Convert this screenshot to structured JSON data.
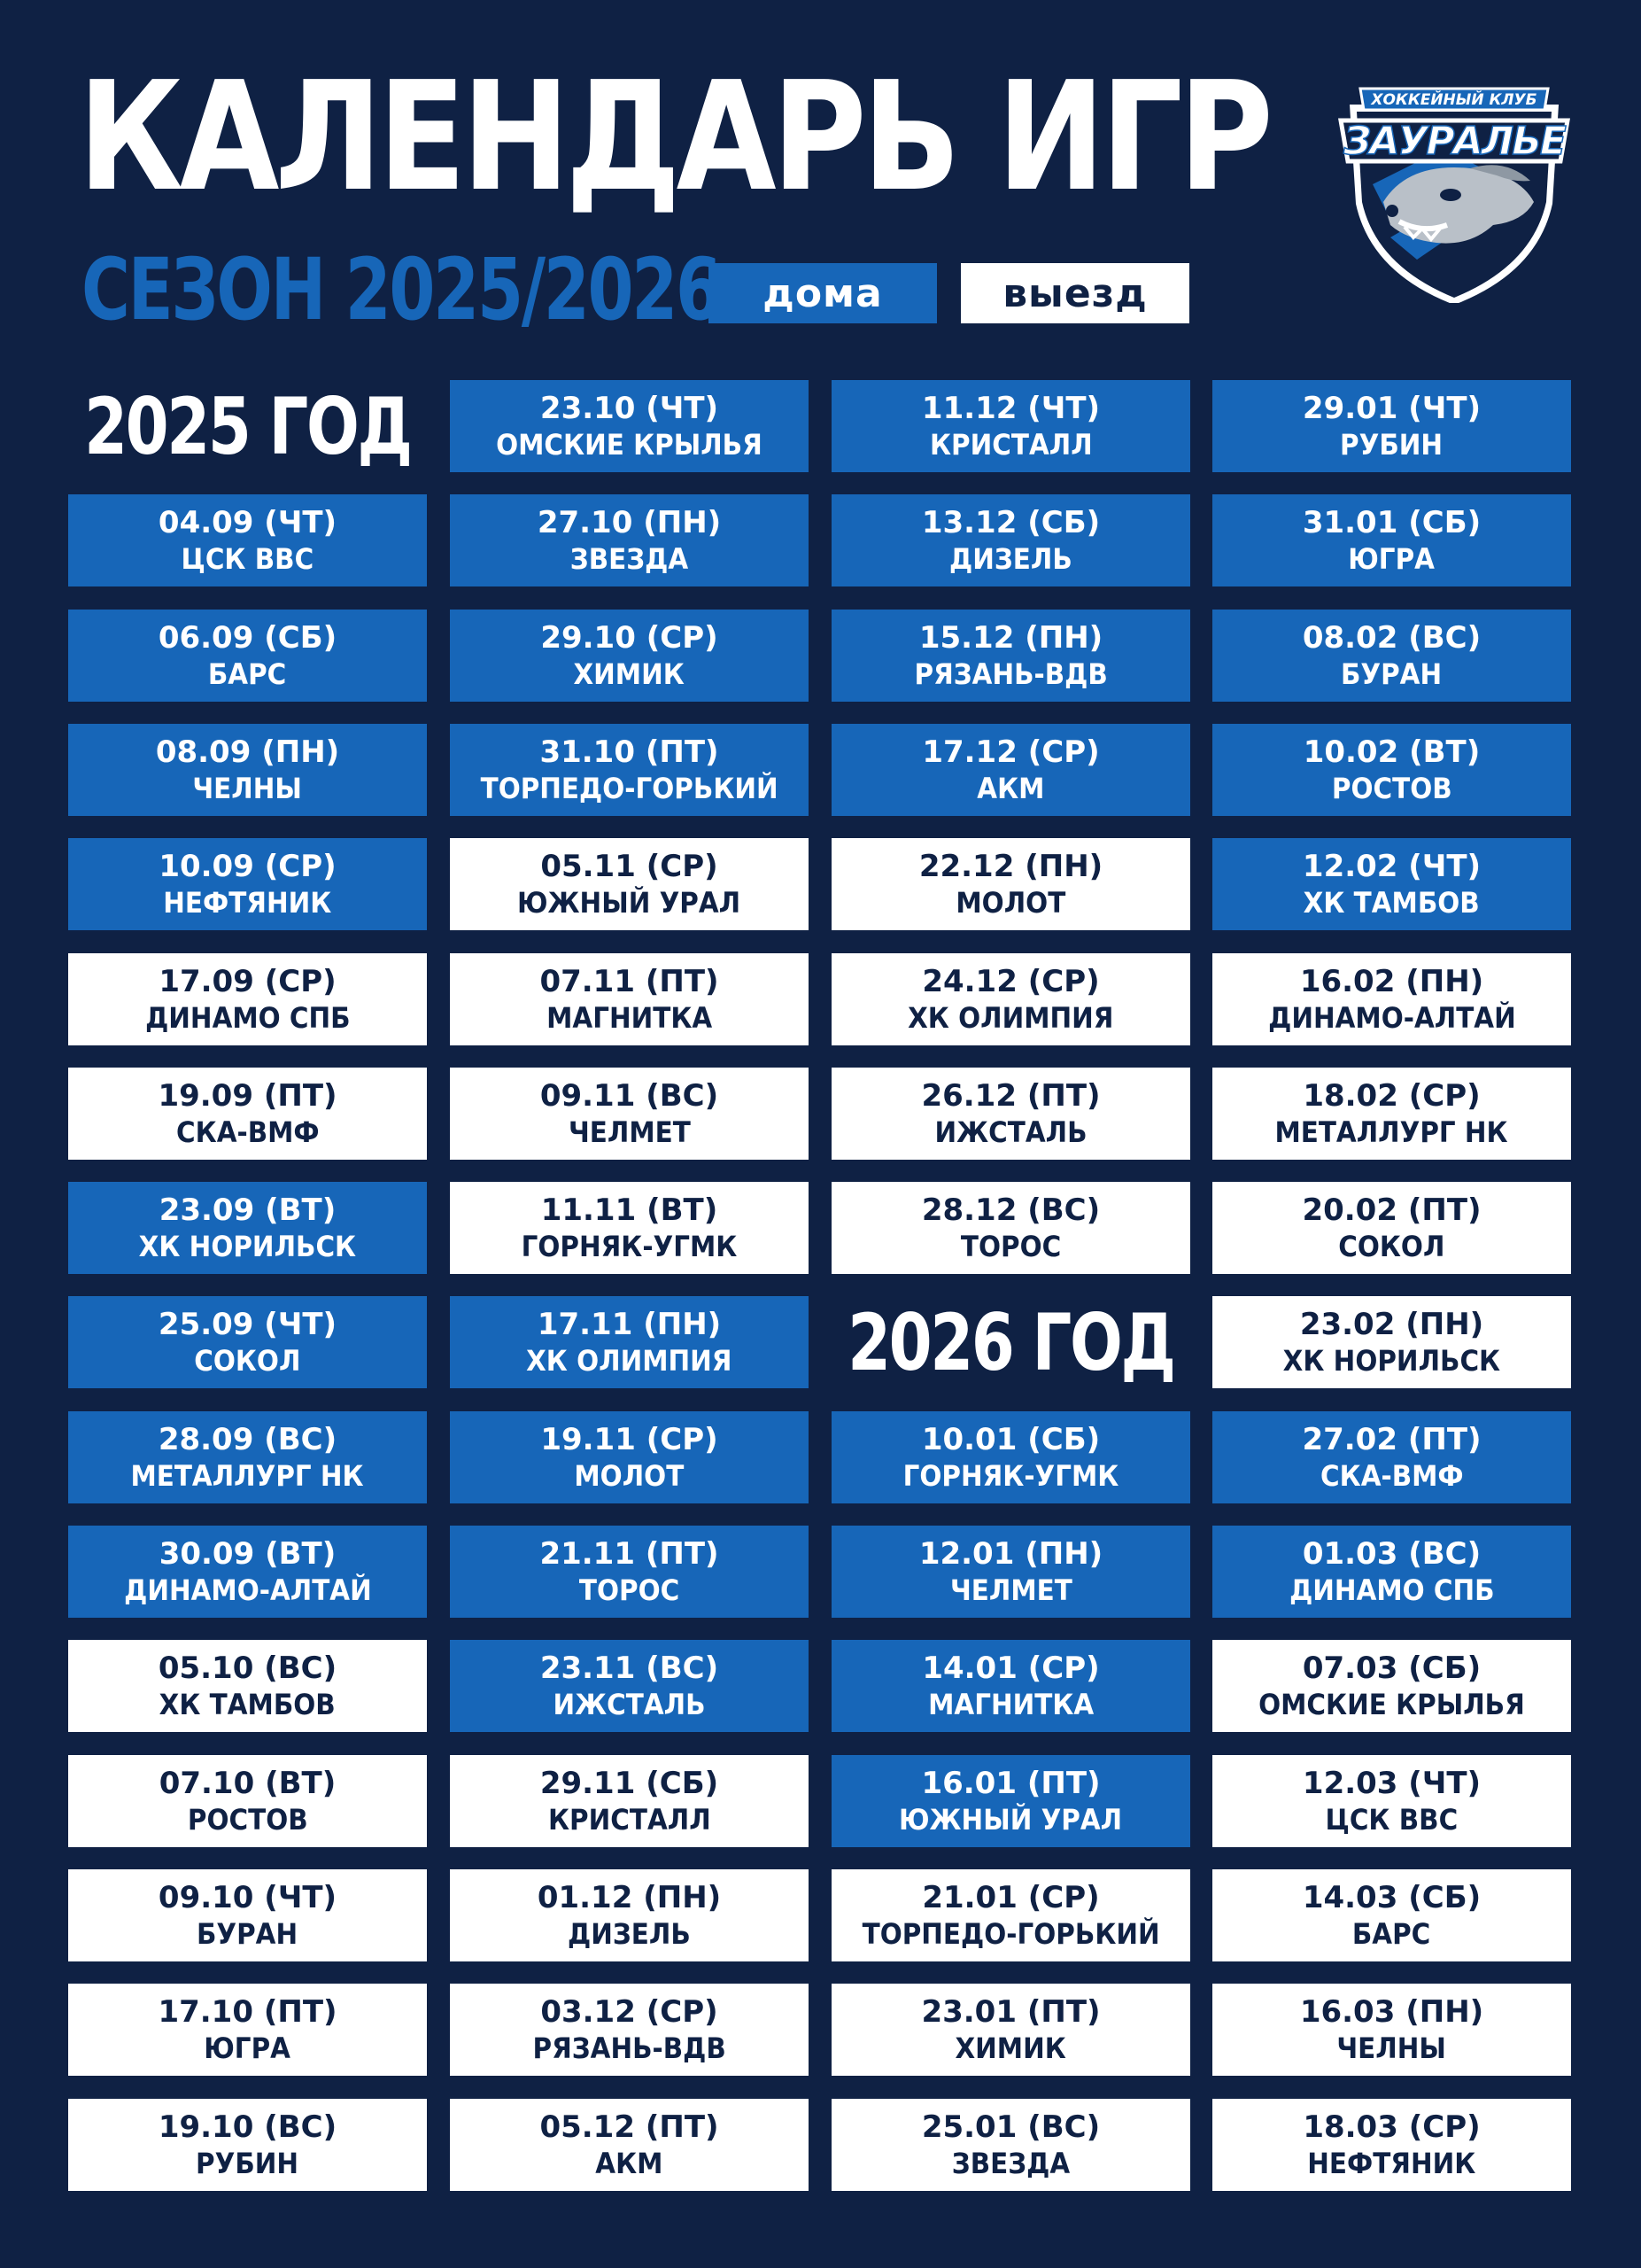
{
  "header": {
    "title": "КАЛЕНДАРЬ ИГР",
    "season": "СЕЗОН 2025/2026",
    "legend_home": "дома",
    "legend_away": "выезд"
  },
  "logo": {
    "caption": "ХОККЕЙНЫЙ КЛУБ",
    "name": "ЗАУРАЛЬЕ",
    "icon": "ferret-mascot-shield-icon"
  },
  "colors": {
    "background": "#0f2144",
    "home": "#1766b8",
    "away": "#ffffff"
  },
  "year_labels": [
    "2025 ГОД",
    "2026 ГОД"
  ],
  "columns": [
    [
      {
        "type": "year",
        "label": "2025 ГОД"
      },
      {
        "type": "game",
        "date": "04.09 (ЧТ)",
        "team": "ЦСК ВВС",
        "home": true
      },
      {
        "type": "game",
        "date": "06.09 (СБ)",
        "team": "БАРС",
        "home": true
      },
      {
        "type": "game",
        "date": "08.09 (ПН)",
        "team": "ЧЕЛНЫ",
        "home": true
      },
      {
        "type": "game",
        "date": "10.09 (СР)",
        "team": "НЕФТЯНИК",
        "home": true
      },
      {
        "type": "game",
        "date": "17.09 (СР)",
        "team": "ДИНАМО СПБ",
        "home": false
      },
      {
        "type": "game",
        "date": "19.09 (ПТ)",
        "team": "СКА-ВМФ",
        "home": false
      },
      {
        "type": "game",
        "date": "23.09 (ВТ)",
        "team": "ХК НОРИЛЬСК",
        "home": true
      },
      {
        "type": "game",
        "date": "25.09 (ЧТ)",
        "team": "СОКОЛ",
        "home": true
      },
      {
        "type": "game",
        "date": "28.09 (ВС)",
        "team": "МЕТАЛЛУРГ НК",
        "home": true
      },
      {
        "type": "game",
        "date": "30.09 (ВТ)",
        "team": "ДИНАМО-АЛТАЙ",
        "home": true
      },
      {
        "type": "game",
        "date": "05.10 (ВС)",
        "team": "ХК ТАМБОВ",
        "home": false
      },
      {
        "type": "game",
        "date": "07.10 (ВТ)",
        "team": "РОСТОВ",
        "home": false
      },
      {
        "type": "game",
        "date": "09.10 (ЧТ)",
        "team": "БУРАН",
        "home": false
      },
      {
        "type": "game",
        "date": "17.10 (ПТ)",
        "team": "ЮГРА",
        "home": false
      },
      {
        "type": "game",
        "date": "19.10 (ВС)",
        "team": "РУБИН",
        "home": false
      }
    ],
    [
      {
        "type": "game",
        "date": "23.10 (ЧТ)",
        "team": "ОМСКИЕ КРЫЛЬЯ",
        "home": true
      },
      {
        "type": "game",
        "date": "27.10 (ПН)",
        "team": "ЗВЕЗДА",
        "home": true
      },
      {
        "type": "game",
        "date": "29.10 (СР)",
        "team": "ХИМИК",
        "home": true
      },
      {
        "type": "game",
        "date": "31.10 (ПТ)",
        "team": "ТОРПЕДО-ГОРЬКИЙ",
        "home": true
      },
      {
        "type": "game",
        "date": "05.11 (СР)",
        "team": "ЮЖНЫЙ УРАЛ",
        "home": false
      },
      {
        "type": "game",
        "date": "07.11 (ПТ)",
        "team": "МАГНИТКА",
        "home": false
      },
      {
        "type": "game",
        "date": "09.11 (ВС)",
        "team": "ЧЕЛМЕТ",
        "home": false
      },
      {
        "type": "game",
        "date": "11.11 (ВТ)",
        "team": "ГОРНЯК-УГМК",
        "home": false
      },
      {
        "type": "game",
        "date": "17.11 (ПН)",
        "team": "ХК ОЛИМПИЯ",
        "home": true
      },
      {
        "type": "game",
        "date": "19.11 (СР)",
        "team": "МОЛОТ",
        "home": true
      },
      {
        "type": "game",
        "date": "21.11 (ПТ)",
        "team": "ТОРОС",
        "home": true
      },
      {
        "type": "game",
        "date": "23.11 (ВС)",
        "team": "ИЖСТАЛЬ",
        "home": true
      },
      {
        "type": "game",
        "date": "29.11 (СБ)",
        "team": "КРИСТАЛЛ",
        "home": false
      },
      {
        "type": "game",
        "date": "01.12 (ПН)",
        "team": "ДИЗЕЛЬ",
        "home": false
      },
      {
        "type": "game",
        "date": "03.12 (СР)",
        "team": "РЯЗАНЬ-ВДВ",
        "home": false
      },
      {
        "type": "game",
        "date": "05.12 (ПТ)",
        "team": "АКМ",
        "home": false
      }
    ],
    [
      {
        "type": "game",
        "date": "11.12 (ЧТ)",
        "team": "КРИСТАЛЛ",
        "home": true
      },
      {
        "type": "game",
        "date": "13.12 (СБ)",
        "team": "ДИЗЕЛЬ",
        "home": true
      },
      {
        "type": "game",
        "date": "15.12 (ПН)",
        "team": "РЯЗАНЬ-ВДВ",
        "home": true
      },
      {
        "type": "game",
        "date": "17.12 (СР)",
        "team": "АКМ",
        "home": true
      },
      {
        "type": "game",
        "date": "22.12 (ПН)",
        "team": "МОЛОТ",
        "home": false
      },
      {
        "type": "game",
        "date": "24.12 (СР)",
        "team": "ХК ОЛИМПИЯ",
        "home": false
      },
      {
        "type": "game",
        "date": "26.12 (ПТ)",
        "team": "ИЖСТАЛЬ",
        "home": false
      },
      {
        "type": "game",
        "date": "28.12 (ВС)",
        "team": "ТОРОС",
        "home": false
      },
      {
        "type": "year",
        "label": "2026 ГОД"
      },
      {
        "type": "game",
        "date": "10.01 (СБ)",
        "team": "ГОРНЯК-УГМК",
        "home": true
      },
      {
        "type": "game",
        "date": "12.01 (ПН)",
        "team": "ЧЕЛМЕТ",
        "home": true
      },
      {
        "type": "game",
        "date": "14.01 (СР)",
        "team": "МАГНИТКА",
        "home": true
      },
      {
        "type": "game",
        "date": "16.01 (ПТ)",
        "team": "ЮЖНЫЙ УРАЛ",
        "home": true
      },
      {
        "type": "game",
        "date": "21.01 (СР)",
        "team": "ТОРПЕДО-ГОРЬКИЙ",
        "home": false
      },
      {
        "type": "game",
        "date": "23.01 (ПТ)",
        "team": "ХИМИК",
        "home": false
      },
      {
        "type": "game",
        "date": "25.01 (ВС)",
        "team": "ЗВЕЗДА",
        "home": false
      }
    ],
    [
      {
        "type": "game",
        "date": "29.01 (ЧТ)",
        "team": "РУБИН",
        "home": true
      },
      {
        "type": "game",
        "date": "31.01 (СБ)",
        "team": "ЮГРА",
        "home": true
      },
      {
        "type": "game",
        "date": "08.02 (ВС)",
        "team": "БУРАН",
        "home": true
      },
      {
        "type": "game",
        "date": "10.02 (ВТ)",
        "team": "РОСТОВ",
        "home": true
      },
      {
        "type": "game",
        "date": "12.02 (ЧТ)",
        "team": "ХК ТАМБОВ",
        "home": true
      },
      {
        "type": "game",
        "date": "16.02 (ПН)",
        "team": "ДИНАМО-АЛТАЙ",
        "home": false
      },
      {
        "type": "game",
        "date": "18.02 (СР)",
        "team": "МЕТАЛЛУРГ НК",
        "home": false
      },
      {
        "type": "game",
        "date": "20.02 (ПТ)",
        "team": "СОКОЛ",
        "home": false
      },
      {
        "type": "game",
        "date": "23.02 (ПН)",
        "team": "ХК НОРИЛЬСК",
        "home": false
      },
      {
        "type": "game",
        "date": "27.02 (ПТ)",
        "team": "СКА-ВМФ",
        "home": true
      },
      {
        "type": "game",
        "date": "01.03 (ВС)",
        "team": "ДИНАМО СПБ",
        "home": true
      },
      {
        "type": "game",
        "date": "07.03 (СБ)",
        "team": "ОМСКИЕ КРЫЛЬЯ",
        "home": false
      },
      {
        "type": "game",
        "date": "12.03 (ЧТ)",
        "team": "ЦСК ВВС",
        "home": false
      },
      {
        "type": "game",
        "date": "14.03 (СБ)",
        "team": "БАРС",
        "home": false
      },
      {
        "type": "game",
        "date": "16.03 (ПН)",
        "team": "ЧЕЛНЫ",
        "home": false
      },
      {
        "type": "game",
        "date": "18.03 (СР)",
        "team": "НЕФТЯНИК",
        "home": false
      }
    ]
  ]
}
